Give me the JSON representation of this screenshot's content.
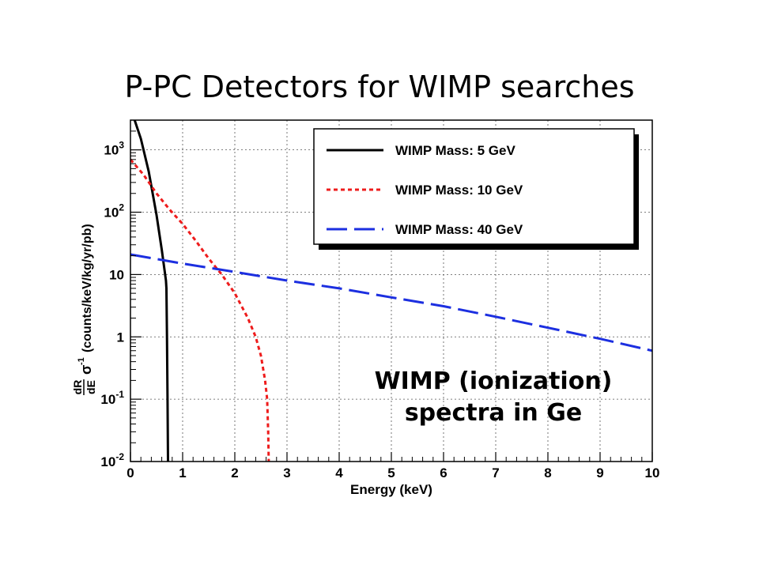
{
  "slide": {
    "title": "P-PC Detectors for WIMP searches"
  },
  "chart_data": {
    "type": "line",
    "title": "P-PC Detectors for WIMP searches",
    "xlabel": "Energy (keV)",
    "ylabel": "(counts/keV/kg/yr/pb)",
    "ylabel_prefix": {
      "numerator": "dR",
      "denominator": "dE",
      "sigma": "σ",
      "exponent": "-1"
    },
    "xlim": [
      0,
      10
    ],
    "ylim": [
      0.01,
      3000
    ],
    "yscale": "log",
    "grid": true,
    "legend_position": "top-right",
    "x_ticks": [
      "0",
      "1",
      "2",
      "3",
      "4",
      "5",
      "6",
      "7",
      "8",
      "9",
      "10"
    ],
    "y_ticks": [
      {
        "value": 0.01,
        "base": "10",
        "exp": "-2"
      },
      {
        "value": 0.1,
        "base": "10",
        "exp": "-1"
      },
      {
        "value": 1,
        "base": "1",
        "exp": ""
      },
      {
        "value": 10,
        "base": "10",
        "exp": ""
      },
      {
        "value": 100,
        "base": "10",
        "exp": "2"
      },
      {
        "value": 1000,
        "base": "10",
        "exp": "3"
      }
    ],
    "series": [
      {
        "name": "WIMP Mass: 5 GeV",
        "color": "#000000",
        "dash": "solid",
        "points": [
          [
            0.08,
            3000
          ],
          [
            0.2,
            1500
          ],
          [
            0.35,
            450
          ],
          [
            0.5,
            90
          ],
          [
            0.6,
            25
          ],
          [
            0.68,
            8
          ],
          [
            0.69,
            6
          ],
          [
            0.7,
            1
          ],
          [
            0.71,
            0.1
          ],
          [
            0.72,
            0.01
          ]
        ]
      },
      {
        "name": "WIMP Mass: 10 GeV",
        "color": "#ee1c1c",
        "dash": "dotted",
        "points": [
          [
            0,
            700
          ],
          [
            0.25,
            400
          ],
          [
            0.5,
            200
          ],
          [
            0.75,
            110
          ],
          [
            1.0,
            65
          ],
          [
            1.25,
            35
          ],
          [
            1.5,
            18
          ],
          [
            1.75,
            10
          ],
          [
            2.0,
            5
          ],
          [
            2.25,
            2
          ],
          [
            2.4,
            1
          ],
          [
            2.5,
            0.5
          ],
          [
            2.58,
            0.2
          ],
          [
            2.62,
            0.1
          ],
          [
            2.64,
            0.03
          ],
          [
            2.65,
            0.01
          ]
        ]
      },
      {
        "name": "WIMP Mass: 40 GeV",
        "color": "#1c2fe0",
        "dash": "dashed",
        "points": [
          [
            0,
            21
          ],
          [
            1,
            15
          ],
          [
            2,
            11
          ],
          [
            3,
            8
          ],
          [
            4,
            6
          ],
          [
            5,
            4.3
          ],
          [
            6,
            3.1
          ],
          [
            7,
            2.1
          ],
          [
            8,
            1.4
          ],
          [
            9,
            0.93
          ],
          [
            10,
            0.6
          ]
        ]
      }
    ],
    "annotation": [
      "WIMP (ionization)",
      "spectra in Ge"
    ]
  }
}
